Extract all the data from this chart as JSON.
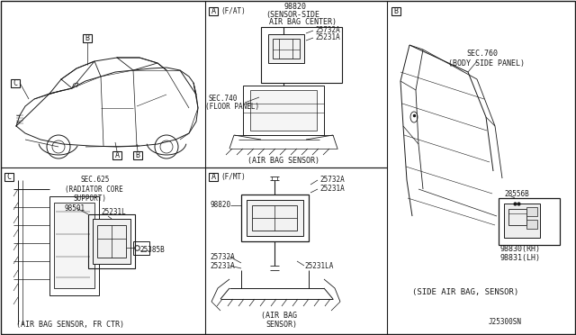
{
  "bg_color": "#FFFFFF",
  "line_color": "#1a1a1a",
  "labels": {
    "fat": "(F/AT)",
    "fmt": "(F/MT)",
    "sec740": "SEC.740",
    "floor_panel": "(FLOOR PANEL)",
    "sec760": "SEC.760",
    "body_side": "(BODY SIDE PANEL)",
    "sec625": "SEC.625",
    "rad_core": "(RADIATOR CORE",
    "support": "SUPPORT)",
    "p98820": "98820",
    "sensor_side": "(SENSOR-SIDE",
    "air_bag_center": "AIR BAG CENTER)",
    "p25732a": "25732A",
    "p25231a": "25231A",
    "air_bag_sensor_1": "(AIR BAG SENSOR)",
    "p25231la": "25231LA",
    "air_bag_sensor_2a": "(AIR BAG",
    "air_bag_sensor_2b": "SENSOR)",
    "p98501": "98501",
    "p25231l": "25231L",
    "p25385b": "25385B",
    "air_bag_fr_ctr": "(AIR BAG SENSOR, FR CTR)",
    "p28556b": "28556B",
    "p98830rh": "98830(RH)",
    "p98831lh": "98831(LH)",
    "side_air_bag": "(SIDE AIR BAG, SENSOR)",
    "part_num": "J25300SN"
  }
}
